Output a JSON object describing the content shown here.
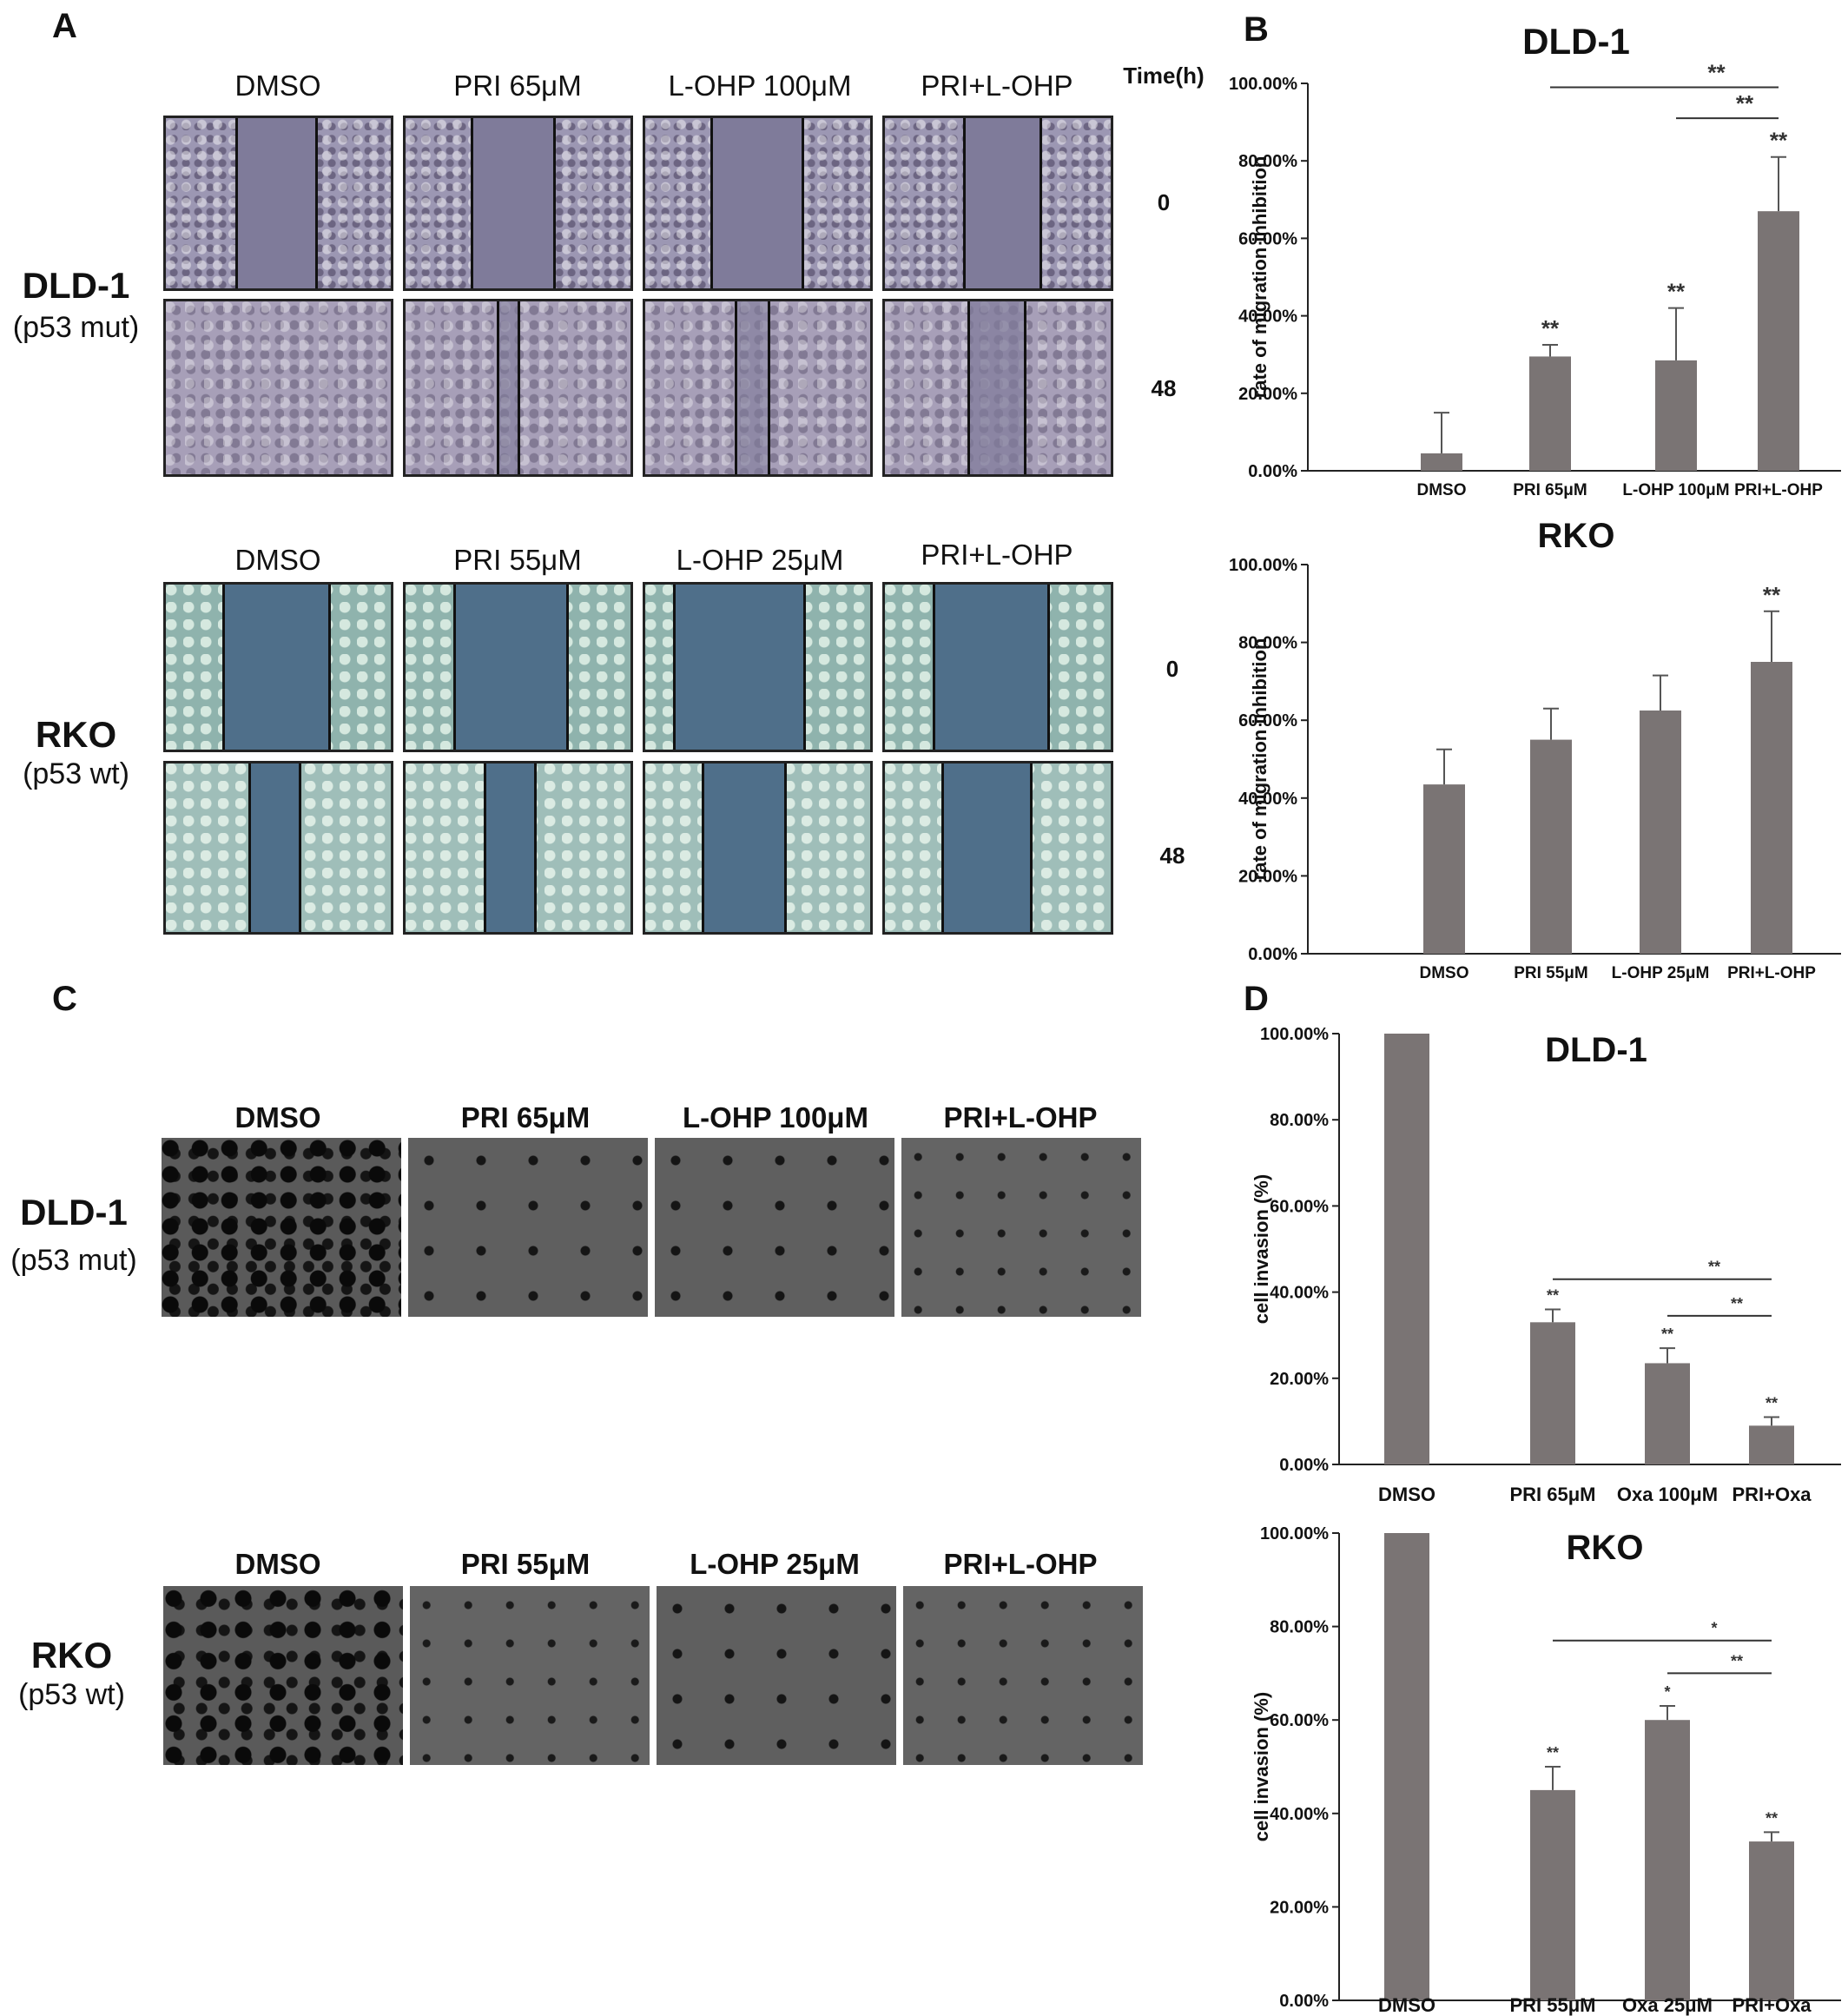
{
  "panels": {
    "A": "A",
    "B": "B",
    "C": "C",
    "D": "D"
  },
  "panelA": {
    "time_header": "Time(h)",
    "dld": {
      "name": "DLD-1",
      "sub": "(p53 mut)",
      "columns": [
        "DMSO",
        "PRI 65μM",
        "L-OHP 100μM",
        "PRI+L-OHP"
      ],
      "times": [
        "0",
        "48"
      ]
    },
    "rko": {
      "name": "RKO",
      "sub": "(p53 wt)",
      "columns": [
        "DMSO",
        "PRI 55μM",
        "L-OHP 25μM",
        "PRI+L-OHP"
      ],
      "times": [
        "0",
        "48"
      ]
    }
  },
  "panelC": {
    "dld": {
      "name": "DLD-1",
      "sub": "(p53 mut)",
      "columns": [
        "DMSO",
        "PRI 65μM",
        "L-OHP 100μM",
        "PRI+L-OHP"
      ]
    },
    "rko": {
      "name": "RKO",
      "sub": "(p53 wt)",
      "columns": [
        "DMSO",
        "PRI 55μM",
        "L-OHP 25μM",
        "PRI+L-OHP"
      ]
    }
  },
  "colors": {
    "bar": "#7a7474",
    "axis": "#222222"
  },
  "chart_data": [
    {
      "id": "B-top",
      "type": "bar",
      "title": "DLD-1",
      "ylabel": "rate of migration inhibition",
      "ylim": [
        0,
        100
      ],
      "yticks": [
        "0.00%",
        "20.00%",
        "40.00%",
        "60.00%",
        "80.00%",
        "100.00%"
      ],
      "categories": [
        "DMSO",
        "PRI 65μM",
        "L-OHP 100μM",
        "PRI+L-OHP"
      ],
      "values": [
        4.5,
        29.5,
        28.5,
        67
      ],
      "errors": [
        10.5,
        3,
        13.5,
        14
      ],
      "bar_marks": [
        "",
        "**",
        "**",
        "**"
      ],
      "brackets": [
        {
          "from": 1,
          "to": 3,
          "mark": "**",
          "level": 99
        },
        {
          "from": 2,
          "to": 3,
          "mark": "**",
          "level": 91
        }
      ]
    },
    {
      "id": "B-bottom",
      "type": "bar",
      "title": "RKO",
      "ylabel": "rate of migration inhibition",
      "ylim": [
        0,
        100
      ],
      "yticks": [
        "0.00%",
        "20.00%",
        "40.00%",
        "60.00%",
        "80.00%",
        "100.00%"
      ],
      "categories": [
        "DMSO",
        "PRI 55μM",
        "L-OHP 25μM",
        "PRI+L-OHP"
      ],
      "values": [
        43.5,
        55,
        62.5,
        75
      ],
      "errors": [
        9,
        8,
        9,
        13
      ],
      "bar_marks": [
        "",
        "",
        "",
        "**"
      ],
      "brackets": []
    },
    {
      "id": "D-top",
      "type": "bar",
      "title": "DLD-1",
      "ylabel": "cell invasion (%)",
      "ylim": [
        0,
        100
      ],
      "yticks": [
        "0.00%",
        "20.00%",
        "40.00%",
        "60.00%",
        "80.00%",
        "100.00%"
      ],
      "categories": [
        "DMSO",
        "PRI 65μM",
        "Oxa 100μM",
        "PRI+Oxa"
      ],
      "values": [
        100,
        33,
        23.5,
        9
      ],
      "errors": [
        0,
        3,
        3.5,
        2
      ],
      "bar_marks": [
        "",
        "**",
        "**",
        "**"
      ],
      "brackets": [
        {
          "from": 1,
          "to": 3,
          "mark": "**",
          "level": 43
        },
        {
          "from": 2,
          "to": 3,
          "mark": "**",
          "level": 34.5
        }
      ]
    },
    {
      "id": "D-bottom",
      "type": "bar",
      "title": "RKO",
      "ylabel": "cell invasion (%)",
      "ylim": [
        0,
        100
      ],
      "yticks": [
        "0.00%",
        "20.00%",
        "40.00%",
        "60.00%",
        "80.00%",
        "100.00%"
      ],
      "categories": [
        "DMSO",
        "PRI 55μM",
        "Oxa 25μM",
        "PRI+Oxa"
      ],
      "values": [
        100,
        45,
        60,
        34
      ],
      "errors": [
        0,
        5,
        3,
        2
      ],
      "bar_marks": [
        "",
        "**",
        "*",
        "**"
      ],
      "brackets": [
        {
          "from": 1,
          "to": 3,
          "mark": "*",
          "level": 77
        },
        {
          "from": 2,
          "to": 3,
          "mark": "**",
          "level": 70
        }
      ]
    }
  ]
}
